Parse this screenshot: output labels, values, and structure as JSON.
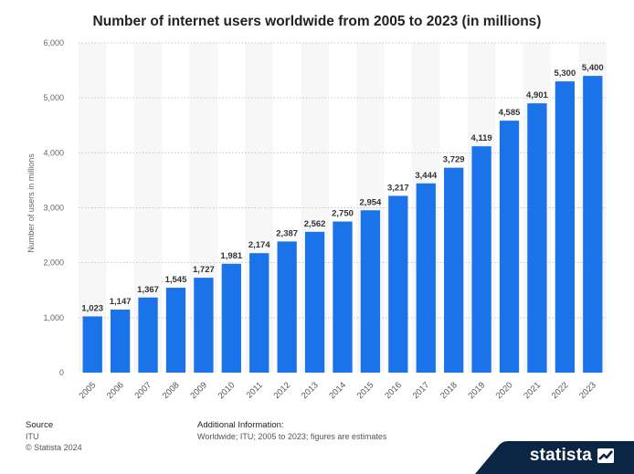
{
  "chart_data": {
    "type": "bar",
    "title": "Number of internet users worldwide from 2005 to 2023 (in millions)",
    "xlabel": "",
    "ylabel": "Number of users in millions",
    "ylim": [
      0,
      6000
    ],
    "yticks": [
      "0",
      "1,000",
      "2,000",
      "3,000",
      "4,000",
      "5,000",
      "6,000"
    ],
    "ytick_values": [
      0,
      1000,
      2000,
      3000,
      4000,
      5000,
      6000
    ],
    "categories": [
      "2005",
      "2006",
      "2007",
      "2008",
      "2009",
      "2010",
      "2011",
      "2012",
      "2013",
      "2014",
      "2015",
      "2016",
      "2017",
      "2018",
      "2019",
      "2020",
      "2021",
      "2022",
      "2023"
    ],
    "values": [
      1023,
      1147,
      1367,
      1545,
      1727,
      1981,
      2174,
      2387,
      2562,
      2750,
      2954,
      3217,
      3444,
      3729,
      4119,
      4585,
      4901,
      5300,
      5400
    ],
    "value_labels": [
      "1,023",
      "1,147",
      "1,367",
      "1,545",
      "1,727",
      "1,981",
      "2,174",
      "2,387",
      "2,562",
      "2,750",
      "2,954",
      "3,217",
      "3,444",
      "3,729",
      "4,119",
      "4,585",
      "4,901",
      "5,300",
      "5,400"
    ],
    "grid": true,
    "bar_color": "#1a73e8",
    "value_label_color": "#333333"
  },
  "source": {
    "heading": "Source",
    "line1": "ITU",
    "line2": "© Statista 2024"
  },
  "additional_info": {
    "heading": "Additional Information:",
    "text": "Worldwide; ITU; 2005 to 2023; figures are estimates"
  },
  "brand": {
    "name": "statista",
    "color": "#0b2545"
  }
}
